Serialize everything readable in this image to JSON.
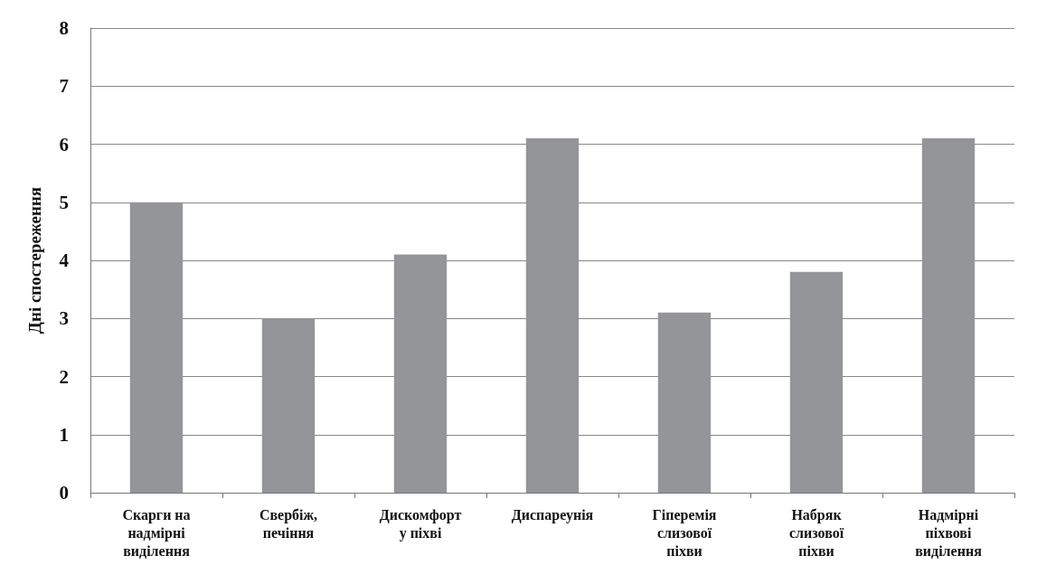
{
  "chart_data": {
    "type": "bar",
    "ylabel": "Дні спостереження",
    "categories": [
      "Скарги на надмірні виділення",
      "Свербіж, печіння",
      "Дискомфорт у піхві",
      "Диспареунія",
      "Гіперемія слизової піхви",
      "Набряк слизової піхви",
      "Надмірні піхвові виділення"
    ],
    "values": [
      5,
      3,
      4.1,
      6.1,
      3.1,
      3.8,
      6.1
    ],
    "color": "#939598",
    "ylim": [
      0,
      8
    ],
    "yticks": [
      0,
      1,
      2,
      3,
      4,
      5,
      6,
      7,
      8
    ],
    "grid": "y"
  }
}
